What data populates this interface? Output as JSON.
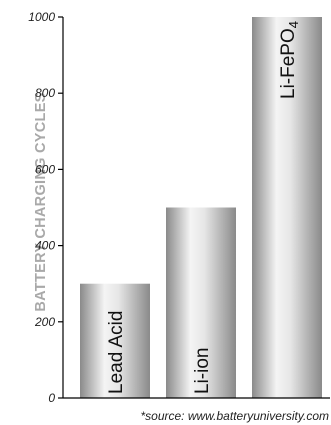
{
  "chart_data": {
    "type": "bar",
    "categories": [
      "Lead Acid",
      "Li-ion",
      "Li-FePO4"
    ],
    "category_display": [
      {
        "main": "Lead Acid",
        "sub": ""
      },
      {
        "main": "Li-ion",
        "sub": ""
      },
      {
        "main": "Li-FePO",
        "sub": "4"
      }
    ],
    "values": [
      300,
      500,
      1000
    ],
    "ylabel": "BATTERY CHARGING CYCLES",
    "xlabel": "",
    "ylim": [
      0,
      1000
    ],
    "yticks": [
      0,
      200,
      400,
      600,
      800,
      1000
    ],
    "grid": false,
    "legend": "none",
    "annotation": "*source: www.batteryuniversity.com",
    "colors": {
      "bar_light": "#f4f4f4",
      "bar_dark": "#8a8a8a",
      "axis": "#000000",
      "ylabel": "#a9a9a9"
    }
  }
}
